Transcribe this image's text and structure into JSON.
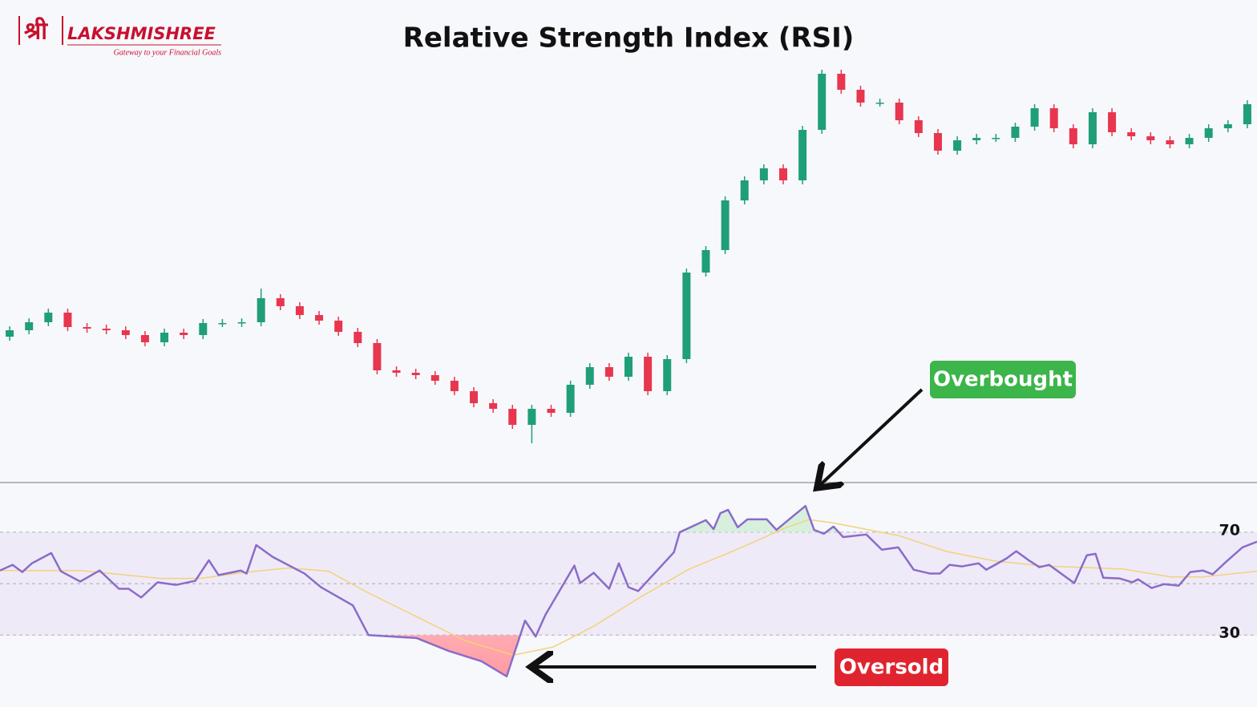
{
  "logo": {
    "mark": "श्री",
    "name": "LAKSHMISHREE",
    "tagline": "Gateway to your Financial Goals"
  },
  "chart_data": [
    {
      "type": "candlestick",
      "title": "Relative Strength Index (RSI)",
      "up_color": "#1f9e7a",
      "down_color": "#e8364f",
      "ylim": [
        0,
        120
      ],
      "open": [
        36.0,
        37.6,
        39.6,
        42.0,
        38.4,
        38.0,
        37.6,
        36.4,
        34.6,
        37.0,
        36.4,
        39.4,
        39.4,
        39.6,
        45.6,
        43.6,
        41.4,
        40.0,
        37.2,
        34.4,
        27.6,
        27.0,
        26.4,
        25.0,
        22.4,
        19.4,
        18.0,
        14.0,
        18.0,
        17.0,
        24.0,
        28.4,
        26.0,
        31.0,
        22.4,
        30.4,
        52.0,
        57.6,
        70.0,
        75.0,
        78.0,
        75.0,
        87.6,
        101.6,
        97.6,
        94.4,
        94.4,
        90.0,
        86.8,
        82.4,
        85.0,
        85.6,
        85.6,
        88.4,
        93.0,
        88.0,
        84.0,
        92.0,
        87.0,
        86.0,
        85.0,
        84.0,
        85.6,
        88.0,
        89.0
      ],
      "high": [
        38.6,
        40.6,
        43,
        43,
        39.4,
        39,
        38.6,
        37.4,
        38,
        38,
        40.4,
        40.4,
        40.6,
        48,
        46.6,
        44.6,
        42.4,
        41,
        38.2,
        35.4,
        28.6,
        28,
        27.4,
        26,
        23.4,
        20.4,
        19,
        19,
        19,
        25,
        29.4,
        29.4,
        32,
        32,
        31.4,
        53,
        58.6,
        71,
        76,
        79,
        79,
        88.6,
        102.6,
        102.6,
        98.6,
        95.4,
        95.4,
        91,
        87.8,
        86,
        86.6,
        86.6,
        89.4,
        94,
        94,
        89,
        93,
        93,
        88,
        87,
        86,
        86.6,
        89,
        90,
        95
      ],
      "low": [
        35,
        36.6,
        38.6,
        37.4,
        37,
        36.6,
        35.4,
        33.6,
        33.6,
        35.4,
        35.4,
        38.4,
        38.4,
        38.6,
        42.6,
        40.4,
        39,
        36.2,
        33.4,
        26.6,
        26,
        25.4,
        24,
        21.4,
        18.4,
        17,
        13,
        9.4,
        16,
        16,
        23,
        25,
        25,
        21.4,
        21.4,
        29.4,
        51,
        56.6,
        69,
        74,
        74,
        74,
        86.6,
        96.6,
        93.4,
        93.4,
        89,
        85.8,
        81.4,
        81.4,
        84,
        84.6,
        84.6,
        87.4,
        87,
        83,
        83,
        86,
        85,
        84,
        83,
        83,
        84.6,
        87,
        88
      ],
      "close": [
        37.6,
        39.6,
        42.0,
        38.4,
        38.0,
        37.6,
        36.4,
        34.6,
        37.0,
        36.4,
        39.4,
        39.4,
        39.6,
        45.6,
        43.6,
        41.4,
        40.0,
        37.2,
        34.4,
        27.6,
        27.0,
        26.4,
        25.0,
        22.4,
        19.4,
        18.0,
        14.0,
        18.0,
        17.0,
        24.0,
        28.4,
        26.0,
        31.0,
        22.4,
        30.4,
        52.0,
        57.6,
        70.0,
        75.0,
        78.0,
        75.0,
        87.6,
        101.6,
        97.6,
        94.4,
        94.4,
        90.0,
        86.8,
        82.4,
        85.0,
        85.6,
        85.6,
        88.4,
        93.0,
        88.0,
        84.0,
        92.0,
        87.0,
        86.0,
        85.0,
        84.0,
        85.6,
        88.0,
        89.0,
        94.0
      ]
    },
    {
      "type": "line",
      "xlim": [
        0,
        130
      ],
      "ylim": [
        2,
        89
      ],
      "yticks": [
        30,
        70
      ],
      "midline": 50,
      "band_color": "#efeaf8",
      "annotations": [
        "Overbought",
        "Oversold"
      ],
      "series": [
        {
          "color": "#8a6cc9",
          "x": [
            0,
            1.3,
            2.3,
            3.3,
            5.3,
            6.3,
            8.3,
            10.3,
            12.3,
            13.3,
            14.6,
            16.3,
            18.2,
            20.2,
            21.6,
            22.6,
            24.9,
            25.5,
            26.5,
            28.2,
            31.5,
            33.2,
            36.5,
            38.1,
            43.1,
            46.4,
            49.8,
            52.4,
            54.3,
            55.4,
            56.4,
            59.4,
            60.0,
            61.4,
            63.0,
            64.0,
            65.0,
            66.0,
            69.7,
            70.3,
            73.0,
            73.8,
            74.5,
            75.3,
            76.3,
            77.3,
            79.3,
            80.3,
            82.1,
            83.3,
            84.2,
            85.2,
            86.2,
            87.2,
            89.6,
            91.2,
            92.9,
            94.5,
            96.2,
            97.2,
            98.2,
            99.5,
            101.2,
            102.0,
            104.1,
            105.1,
            106.5,
            107.5,
            108.5,
            111.1,
            112.4,
            113.3,
            114.1,
            115.8,
            117.1,
            117.7,
            119.1,
            120.4,
            121.9,
            123.1,
            124.4,
            125.4,
            126.9,
            128.5,
            130
          ],
          "values": [
            55.1,
            57.3,
            54.5,
            57.9,
            61.9,
            54.8,
            50.8,
            55.1,
            48.0,
            48.0,
            44.6,
            50.5,
            49.5,
            51.1,
            59.1,
            53.3,
            55.1,
            53.9,
            65.0,
            60.4,
            53.9,
            48.6,
            41.5,
            30.0,
            28.8,
            23.8,
            19.8,
            13.9,
            35.6,
            29.4,
            37.8,
            57.0,
            50.2,
            54.2,
            48.0,
            57.9,
            48.6,
            47.1,
            62.2,
            70.0,
            74.7,
            71.2,
            77.4,
            78.7,
            71.9,
            75.0,
            75.0,
            70.9,
            76.5,
            80.2,
            70.9,
            69.4,
            72.2,
            68.1,
            69.1,
            63.2,
            64.1,
            55.4,
            53.9,
            53.9,
            57.3,
            56.7,
            57.9,
            55.4,
            59.8,
            62.6,
            58.8,
            56.4,
            57.3,
            50.2,
            61.0,
            61.6,
            52.3,
            52.0,
            50.5,
            51.7,
            48.3,
            49.8,
            49.2,
            54.5,
            55.1,
            53.6,
            58.8,
            64.1,
            66.3
          ]
        },
        {
          "color": "#f3d27a",
          "x": [
            0,
            8.3,
            16.6,
            20.7,
            24.9,
            29.9,
            34,
            38.1,
            43.1,
            48.1,
            53.1,
            57.2,
            61.4,
            66.3,
            71.3,
            76.3,
            81.3,
            83.7,
            86.2,
            92.9,
            97.9,
            102.9,
            107.8,
            116.1,
            121.1,
            124.4,
            130
          ],
          "values": [
            55.1,
            55.1,
            52.0,
            52.0,
            54.2,
            56.1,
            54.8,
            46.4,
            37.1,
            27.8,
            22.2,
            25.3,
            33.4,
            44.9,
            55.7,
            63.4,
            71.8,
            74.9,
            73.6,
            68.7,
            62.5,
            58.8,
            56.9,
            55.7,
            52.6,
            52.6,
            54.8
          ]
        }
      ]
    }
  ]
}
